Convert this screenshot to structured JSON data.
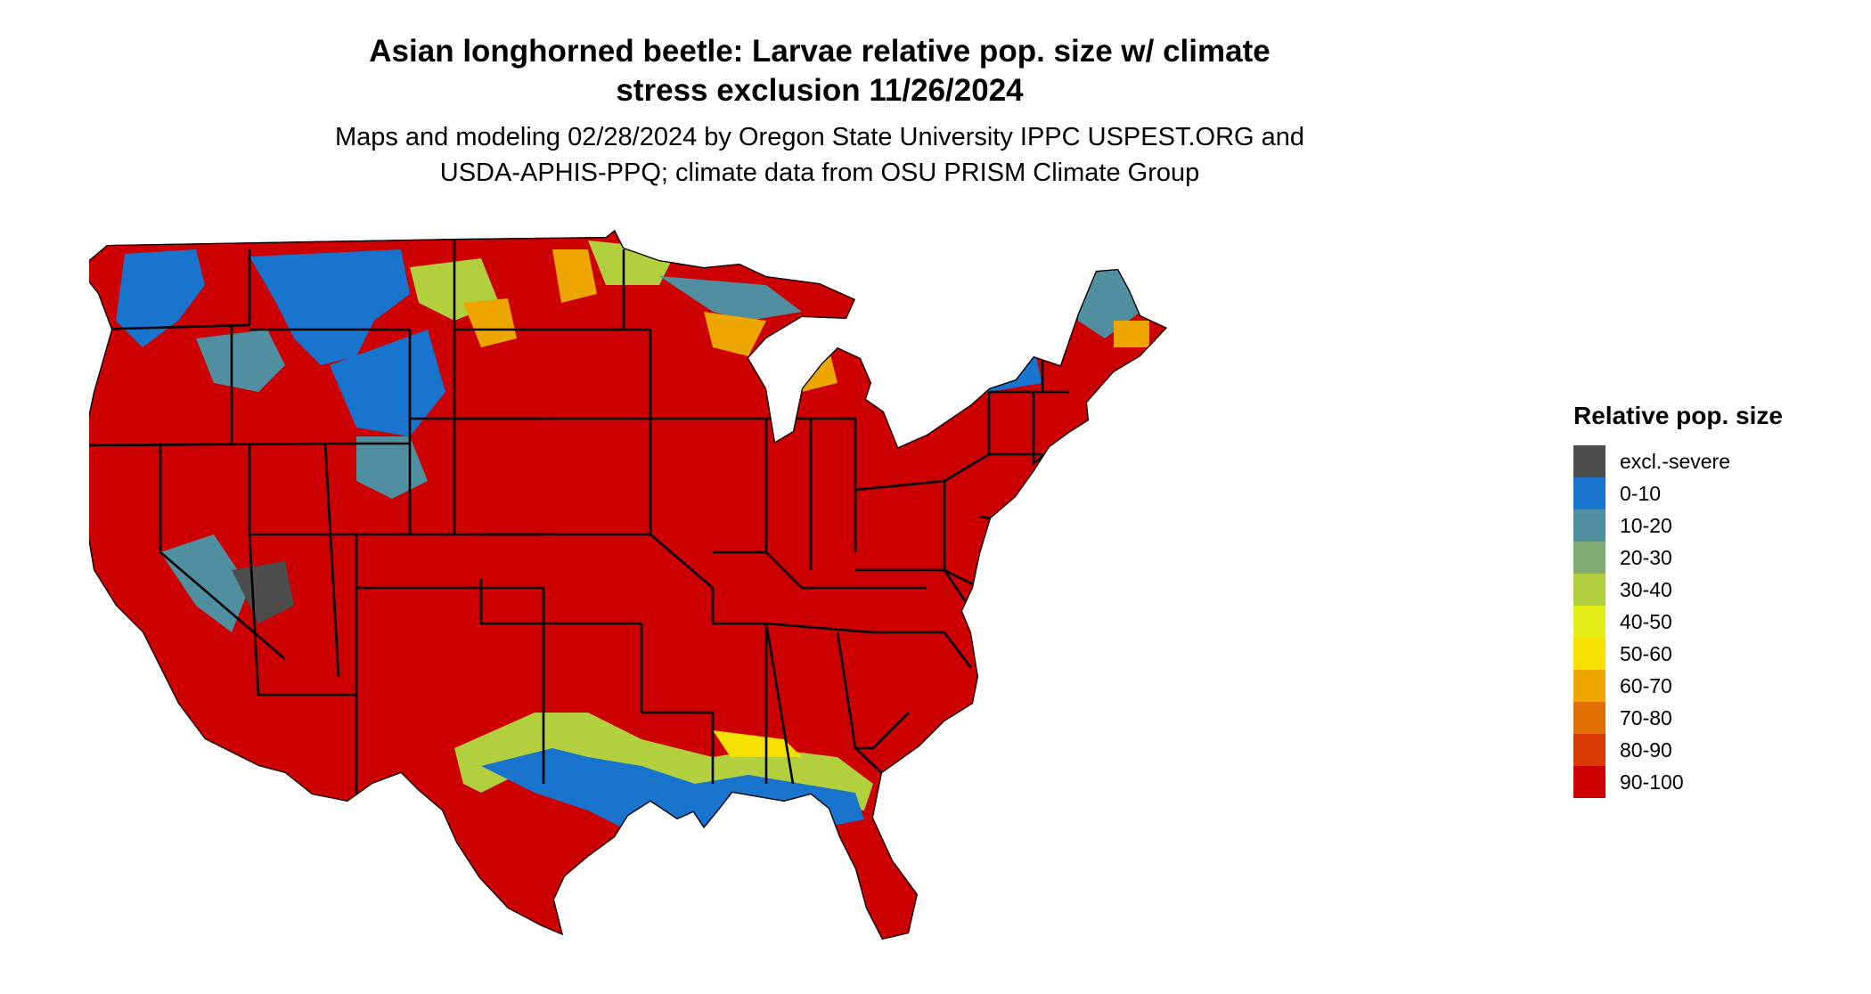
{
  "title": {
    "line1": "Asian longhorned beetle: Larvae relative pop. size w/ climate",
    "line2": "stress exclusion 11/26/2024"
  },
  "subtitle": {
    "line1": "Maps and modeling 02/28/2024 by Oregon State University IPPC USPEST.ORG and",
    "line2": "USDA-APHIS-PPQ; climate data from OSU PRISM Climate Group"
  },
  "legend": {
    "title": "Relative pop. size",
    "items": [
      {
        "label": "excl.-severe",
        "color": "#4d4d4d"
      },
      {
        "label": "0-10",
        "color": "#1874cd"
      },
      {
        "label": "10-20",
        "color": "#4f8fa0"
      },
      {
        "label": "20-30",
        "color": "#7eab74"
      },
      {
        "label": "30-40",
        "color": "#b2cf3e"
      },
      {
        "label": "40-50",
        "color": "#e3ef16"
      },
      {
        "label": "50-60",
        "color": "#f6e000"
      },
      {
        "label": "60-70",
        "color": "#eda500"
      },
      {
        "label": "70-80",
        "color": "#e07000"
      },
      {
        "label": "80-90",
        "color": "#d83a00"
      },
      {
        "label": "90-100",
        "color": "#cc0000"
      }
    ]
  },
  "map": {
    "region": "contiguous United States",
    "dominant_class": "90-100"
  }
}
